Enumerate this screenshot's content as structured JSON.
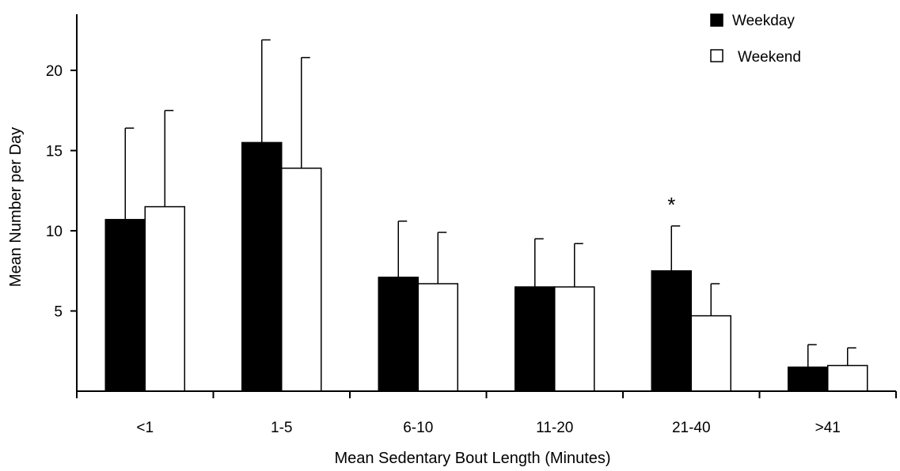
{
  "chart_data": {
    "type": "bar",
    "title": "",
    "xlabel": "Mean Sedentary Bout Length (Minutes)",
    "ylabel": "Mean Number per Day",
    "categories": [
      "<1",
      "1-5",
      "6-10",
      "11-20",
      "21-40",
      ">41"
    ],
    "yticks": [
      "5",
      "10",
      "15",
      "20"
    ],
    "ytick_values": [
      5,
      10,
      15,
      20
    ],
    "ylim": [
      0,
      23.5
    ],
    "legend_position": "top-right",
    "series": [
      {
        "name": "Weekday",
        "color": "#000000",
        "values": [
          10.7,
          15.5,
          7.1,
          6.5,
          7.5,
          1.5
        ],
        "error": [
          5.7,
          6.4,
          3.5,
          3.0,
          2.8,
          1.4
        ]
      },
      {
        "name": "Weekend",
        "color": "#ffffff",
        "values": [
          11.5,
          13.9,
          6.7,
          6.5,
          4.7,
          1.6
        ],
        "error": [
          6.0,
          6.9,
          3.2,
          2.7,
          2.0,
          1.1
        ]
      }
    ],
    "annotations": [
      {
        "text": "*",
        "category": "21-40"
      }
    ]
  }
}
